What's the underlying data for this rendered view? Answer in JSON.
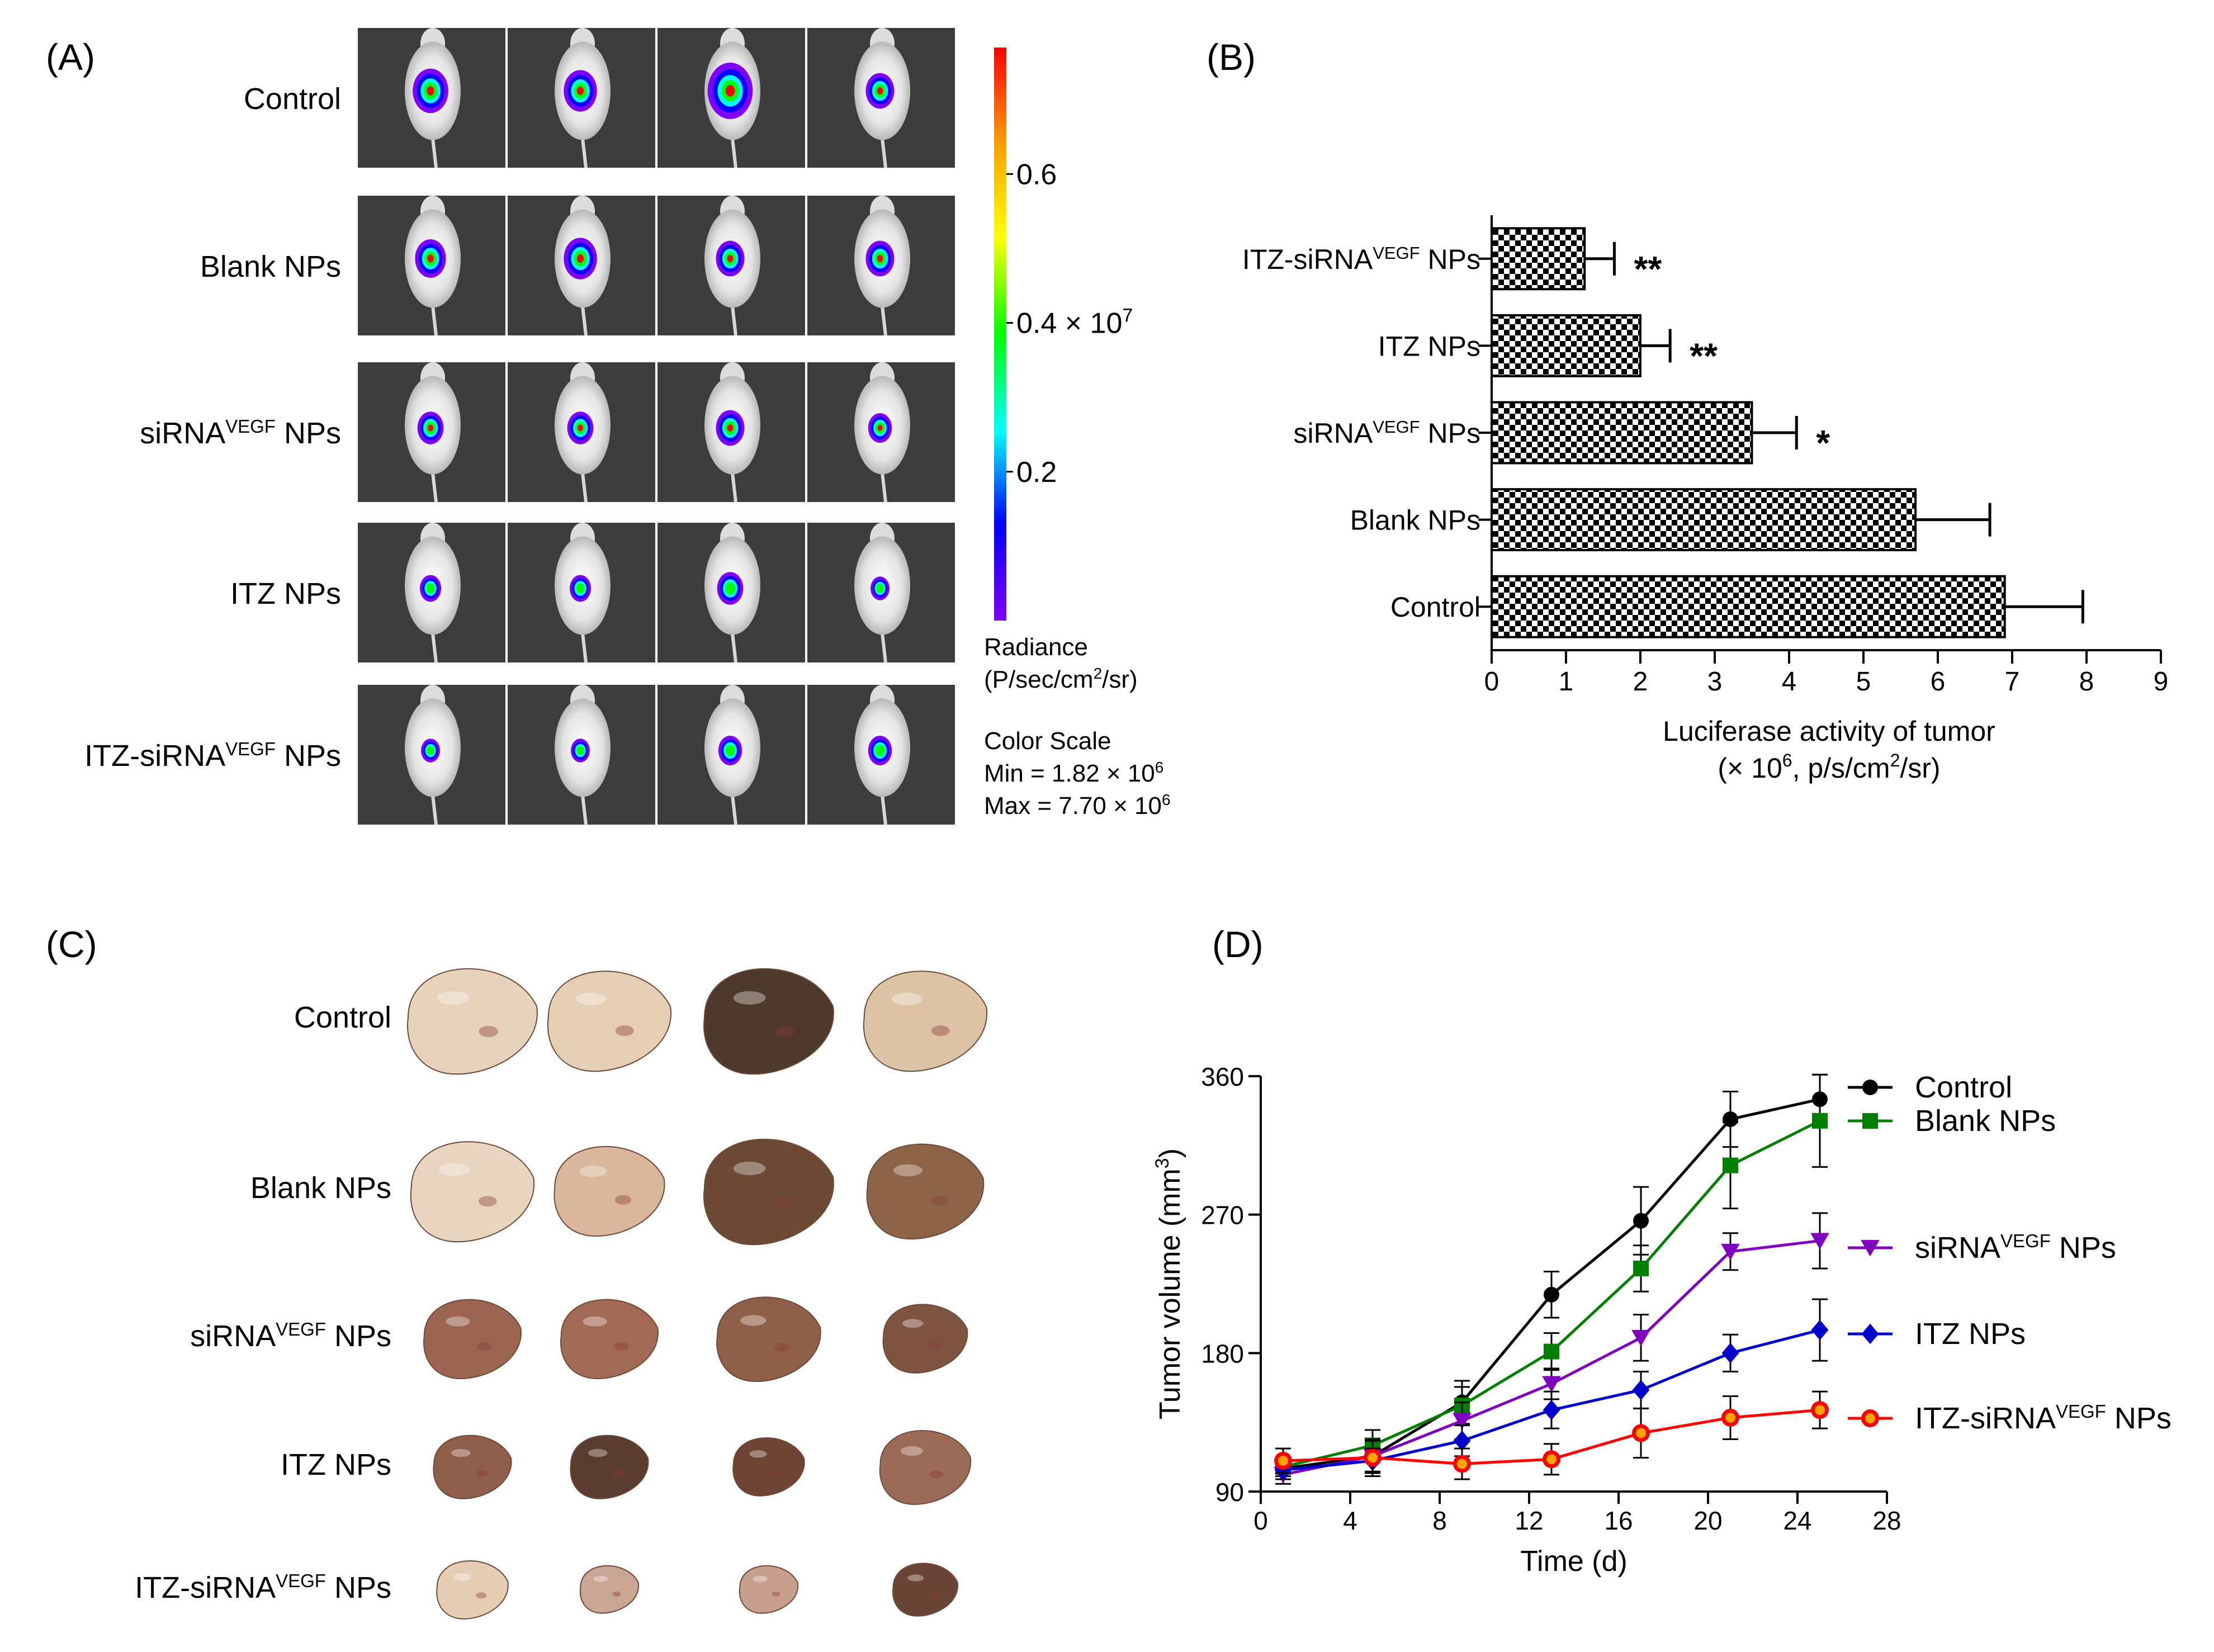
{
  "panels": {
    "A": {
      "label": "(A)",
      "rows": [
        {
          "name": "Control",
          "sup": "",
          "tail": ""
        },
        {
          "name": "Blank NPs",
          "sup": "",
          "tail": ""
        },
        {
          "name": "siRNA",
          "sup": "VEGF",
          "tail": " NPs"
        },
        {
          "name": "ITZ NPs",
          "sup": "",
          "tail": ""
        },
        {
          "name": "ITZ-siRNA",
          "sup": "VEGF",
          "tail": " NPs"
        }
      ],
      "signal_size": [
        [
          0.75,
          0.7,
          0.95,
          0.6
        ],
        [
          0.65,
          0.7,
          0.6,
          0.6
        ],
        [
          0.55,
          0.55,
          0.6,
          0.5
        ],
        [
          0.45,
          0.45,
          0.55,
          0.4
        ],
        [
          0.4,
          0.4,
          0.5,
          0.5
        ]
      ],
      "colorbar": {
        "tick_labels": [
          "0.6",
          "0.4 × 10",
          "0.2"
        ],
        "tick_values": [
          0.6,
          0.4,
          0.2
        ],
        "exponent": "7",
        "range": [
          0.0,
          0.77
        ],
        "colors": [
          "#ff0000",
          "#ffa000",
          "#ffff00",
          "#00ff00",
          "#00ffff",
          "#0000ff",
          "#8000ff"
        ],
        "radiance_title": "Radiance",
        "radiance_unit_pre": "(P/sec/cm",
        "radiance_unit_sup": "2",
        "radiance_unit_post": "/sr)",
        "scale_title": "Color Scale",
        "min_text": "Min = 1.82 × 10",
        "min_exp": "6",
        "max_text": "Max = 7.70 × 10",
        "max_exp": "6"
      }
    },
    "B": {
      "label": "(B)"
    },
    "C": {
      "label": "(C)",
      "rows": [
        {
          "name": "Control",
          "sup": "",
          "tail": ""
        },
        {
          "name": "Blank NPs",
          "sup": "",
          "tail": ""
        },
        {
          "name": "siRNA",
          "sup": "VEGF",
          "tail": " NPs"
        },
        {
          "name": "ITZ NPs",
          "sup": "",
          "tail": ""
        },
        {
          "name": "ITZ-siRNA",
          "sup": "VEGF",
          "tail": " NPs"
        }
      ],
      "tumor_size": [
        [
          1.0,
          0.95,
          1.0,
          0.95
        ],
        [
          0.95,
          0.85,
          1.0,
          0.9
        ],
        [
          0.75,
          0.75,
          0.8,
          0.65
        ],
        [
          0.6,
          0.6,
          0.55,
          0.7
        ],
        [
          0.55,
          0.45,
          0.45,
          0.5
        ]
      ],
      "tumor_colors": [
        [
          "#e7d3bb",
          "#e4ceb4",
          "#4e3a2c",
          "#dcc3a6"
        ],
        [
          "#e8d5bf",
          "#d8b79c",
          "#6c4a36",
          "#8d6448"
        ],
        [
          "#9c6552",
          "#a06a55",
          "#8f6049",
          "#7f5440"
        ],
        [
          "#8f5f4c",
          "#5b3d2f",
          "#6e4435",
          "#9b6b57"
        ],
        [
          "#e4cdb3",
          "#c9a594",
          "#c9a08e",
          "#6a4535"
        ]
      ]
    },
    "D": {
      "label": "(D)"
    }
  },
  "chart_data": [
    {
      "panel": "B",
      "type": "bar",
      "orientation": "horizontal",
      "categories": [
        {
          "name": "ITZ-siRNA",
          "sup": "VEGF",
          "tail": " NPs"
        },
        {
          "name": "ITZ NPs",
          "sup": "",
          "tail": ""
        },
        {
          "name": "siRNA",
          "sup": "VEGF",
          "tail": " NPs"
        },
        {
          "name": "Blank NPs",
          "sup": "",
          "tail": ""
        },
        {
          "name": "Control",
          "sup": "",
          "tail": ""
        }
      ],
      "values": [
        1.25,
        2.0,
        3.5,
        5.7,
        6.9
      ],
      "errors": [
        0.4,
        0.4,
        0.6,
        1.0,
        1.05
      ],
      "significance": [
        "**",
        "**",
        "*",
        "",
        ""
      ],
      "xlim": [
        0,
        9
      ],
      "xticks": [
        0,
        1,
        2,
        3,
        4,
        5,
        6,
        7,
        8,
        9
      ],
      "xlabel": "Luciferase activity of tumor",
      "xlabel2_pre": "(× 10",
      "xlabel2_sup": "6",
      "xlabel2_mid": ", p/s/cm",
      "xlabel2_sup2": "2",
      "xlabel2_post": "/sr)",
      "pattern": "checkerboard"
    },
    {
      "panel": "D",
      "type": "line",
      "x": [
        1,
        5,
        9,
        13,
        17,
        21,
        25
      ],
      "xlim": [
        0,
        28
      ],
      "xticks": [
        0,
        4,
        8,
        12,
        16,
        20,
        24,
        28
      ],
      "ylim": [
        90,
        360
      ],
      "yticks": [
        90,
        180,
        270,
        360
      ],
      "xlabel": "Time (d)",
      "ylabel_pre": "Tumor volume (mm",
      "ylabel_sup": "3",
      "ylabel_post": ")",
      "series": [
        {
          "name": "Control",
          "sup": "",
          "tail": "",
          "color": "#000000",
          "marker": "circle",
          "values": [
            105,
            113,
            148,
            218,
            266,
            332,
            345
          ],
          "errors": [
            7,
            10,
            14,
            15,
            22,
            18,
            16
          ]
        },
        {
          "name": "Blank NPs",
          "sup": "",
          "tail": "",
          "color": "#007f00",
          "marker": "square",
          "values": [
            106,
            120,
            146,
            181,
            235,
            302,
            331
          ],
          "errors": [
            6,
            10,
            12,
            12,
            15,
            28,
            30
          ]
        },
        {
          "name": "siRNA",
          "sup": "VEGF",
          "tail": " NPs",
          "color": "#7f00bf",
          "marker": "triangle-down",
          "values": [
            101,
            113,
            136,
            160,
            190,
            246,
            253
          ],
          "errors": [
            6,
            10,
            12,
            10,
            15,
            12,
            18
          ]
        },
        {
          "name": "ITZ NPs",
          "sup": "",
          "tail": "",
          "color": "#0000cc",
          "marker": "diamond",
          "values": [
            104,
            110,
            123,
            143,
            156,
            180,
            195
          ],
          "errors": [
            6,
            8,
            10,
            12,
            12,
            12,
            20
          ]
        },
        {
          "name": "ITZ-siRNA",
          "sup": "VEGF",
          "tail": " NPs",
          "color": "#ff0000",
          "marker": "circle-orange",
          "values": [
            110,
            112,
            108,
            111,
            128,
            138,
            143
          ],
          "errors": [
            8,
            12,
            10,
            10,
            16,
            14,
            12
          ]
        }
      ]
    }
  ]
}
